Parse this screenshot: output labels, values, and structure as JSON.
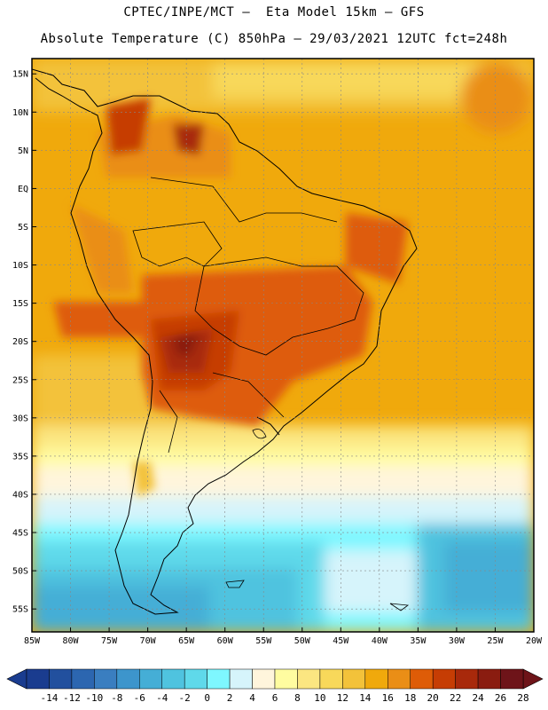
{
  "header": {
    "line1": "CPTEC/INPE/MCT –  Eta Model 15km – GFS",
    "line2": "Absolute Temperature (C) 850hPa – 29/03/2021 12UTC fct=248h"
  },
  "map": {
    "lon_range": [
      -85,
      -20
    ],
    "lat_range": [
      -58,
      17
    ],
    "lat_labels": [
      "15N",
      "10N",
      "5N",
      "EQ",
      "5S",
      "10S",
      "15S",
      "20S",
      "25S",
      "30S",
      "35S",
      "40S",
      "45S",
      "50S",
      "55S"
    ],
    "lon_labels": [
      "85W",
      "80W",
      "75W",
      "70W",
      "65W",
      "60W",
      "55W",
      "50W",
      "45W",
      "40W",
      "35W",
      "30W",
      "25W",
      "20W"
    ]
  },
  "colorbar": {
    "ticks": [
      "-14",
      "-12",
      "-10",
      "-8",
      "-6",
      "-4",
      "-2",
      "0",
      "2",
      "4",
      "6",
      "8",
      "10",
      "12",
      "14",
      "16",
      "18",
      "20",
      "22",
      "24",
      "26",
      "28"
    ],
    "colors": [
      "#1a3c8f",
      "#22509e",
      "#2c66b0",
      "#3a7ec0",
      "#3d95cc",
      "#45aed6",
      "#4fc3df",
      "#5fd9ea",
      "#7ef7ff",
      "#d6f4fb",
      "#fff5dc",
      "#fffca0",
      "#fbe681",
      "#f8d85a",
      "#f3c23a",
      "#f0a90c",
      "#ea8e16",
      "#de5c07",
      "#c63d04",
      "#a8290b",
      "#8a1c10",
      "#6e1419"
    ]
  }
}
